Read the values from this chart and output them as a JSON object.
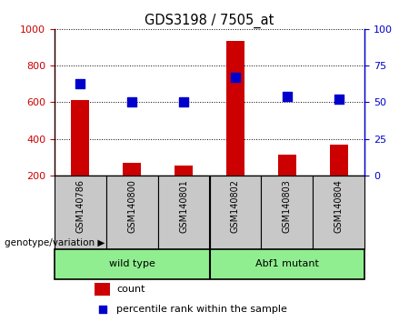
{
  "title": "GDS3198 / 7505_at",
  "samples": [
    "GSM140786",
    "GSM140800",
    "GSM140801",
    "GSM140802",
    "GSM140803",
    "GSM140804"
  ],
  "counts": [
    610,
    270,
    255,
    935,
    315,
    370
  ],
  "percentile_ranks": [
    63,
    50,
    50,
    67,
    54,
    52
  ],
  "group_label": "genotype/variation",
  "group1_label": "wild type",
  "group2_label": "Abf1 mutant",
  "group1_indices": [
    0,
    1,
    2
  ],
  "group2_indices": [
    3,
    4,
    5
  ],
  "group_color": "#90ee90",
  "ylim_left": [
    200,
    1000
  ],
  "ylim_right": [
    0,
    100
  ],
  "yticks_left": [
    200,
    400,
    600,
    800,
    1000
  ],
  "yticks_right": [
    0,
    25,
    50,
    75,
    100
  ],
  "bar_color": "#cc0000",
  "dot_color": "#0000cc",
  "bar_width": 0.35,
  "dot_size": 55,
  "plot_bg": "#ffffff",
  "tick_area_color": "#c8c8c8",
  "legend_items": [
    "count",
    "percentile rank within the sample"
  ]
}
